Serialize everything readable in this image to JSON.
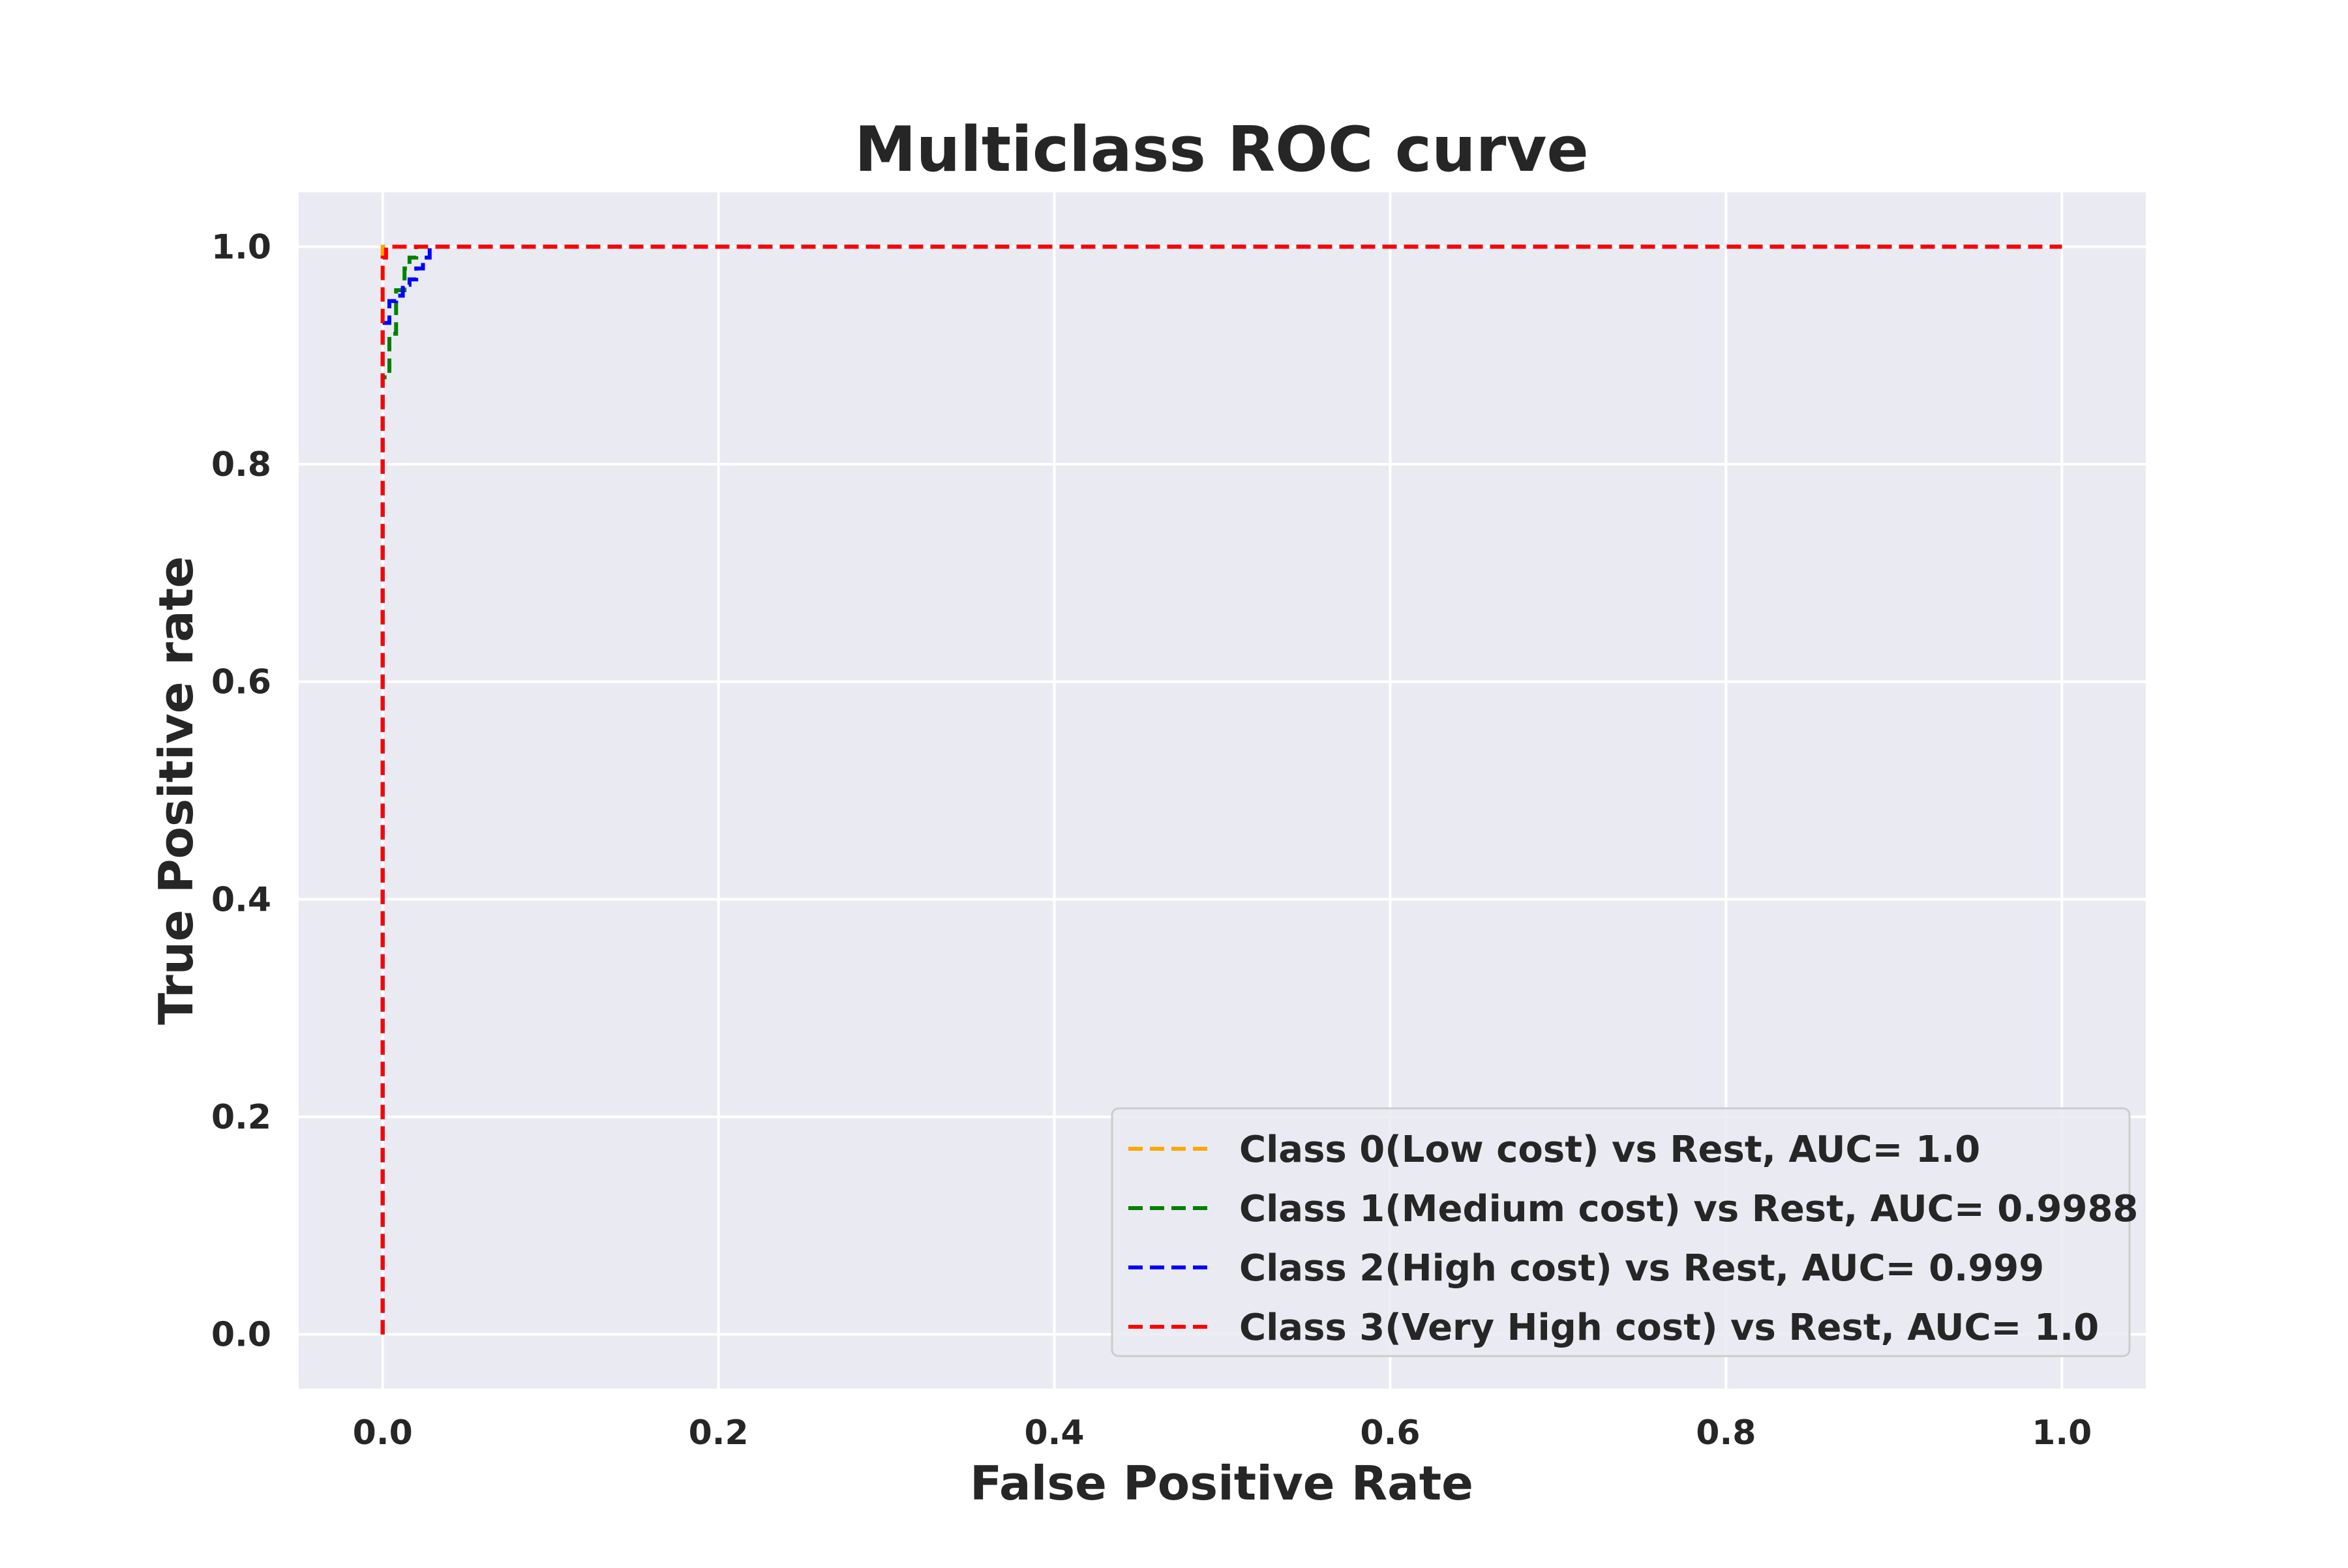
{
  "chart_data": {
    "type": "line",
    "title": "Multiclass ROC curve",
    "xlabel": "False Positive Rate",
    "ylabel": "True Positive rate",
    "xlim": [
      -0.05,
      1.05
    ],
    "ylim": [
      -0.05,
      1.05
    ],
    "xticks": [
      0.0,
      0.2,
      0.4,
      0.6,
      0.8,
      1.0
    ],
    "xtick_labels": [
      "0.0",
      "0.2",
      "0.4",
      "0.6",
      "0.8",
      "1.0"
    ],
    "yticks": [
      0.0,
      0.2,
      0.4,
      0.6,
      0.8,
      1.0
    ],
    "ytick_labels": [
      "0.0",
      "0.2",
      "0.4",
      "0.6",
      "0.8",
      "1.0"
    ],
    "grid": true,
    "background": "#eaeaf2",
    "legend_position": "lower-right",
    "series": [
      {
        "name": "Class 0(Low cost) vs Rest, AUC= 1.0",
        "color": "#ffa500",
        "style": "dashed",
        "x": [
          0.0,
          0.0,
          1.0
        ],
        "y": [
          0.0,
          1.0,
          1.0
        ]
      },
      {
        "name": "Class 1(Medium cost) vs Rest, AUC= 0.9988",
        "color": "#008000",
        "style": "dashed",
        "x": [
          0.0,
          0.0,
          0.004,
          0.004,
          0.008,
          0.008,
          0.013,
          0.013,
          0.016,
          0.016,
          0.02,
          0.02,
          0.024,
          0.024,
          1.0
        ],
        "y": [
          0.0,
          0.88,
          0.88,
          0.92,
          0.92,
          0.96,
          0.96,
          0.98,
          0.98,
          0.99,
          0.99,
          1.0,
          1.0,
          1.0,
          1.0
        ]
      },
      {
        "name": "Class 2(High cost) vs Rest, AUC= 0.999",
        "color": "#0000ff",
        "style": "dashed",
        "x": [
          0.0,
          0.0,
          0.004,
          0.004,
          0.008,
          0.008,
          0.012,
          0.012,
          0.016,
          0.016,
          0.02,
          0.02,
          0.024,
          0.024,
          0.028,
          0.028,
          1.0
        ],
        "y": [
          0.0,
          0.93,
          0.93,
          0.95,
          0.95,
          0.955,
          0.955,
          0.965,
          0.965,
          0.97,
          0.97,
          0.98,
          0.98,
          0.99,
          0.99,
          1.0,
          1.0
        ]
      },
      {
        "name": "Class 3(Very High cost) vs Rest, AUC= 1.0",
        "color": "#ff0000",
        "style": "dashed",
        "x": [
          0.0,
          0.0,
          0.002,
          0.002,
          1.0
        ],
        "y": [
          0.0,
          0.99,
          0.99,
          1.0,
          1.0
        ]
      }
    ]
  }
}
